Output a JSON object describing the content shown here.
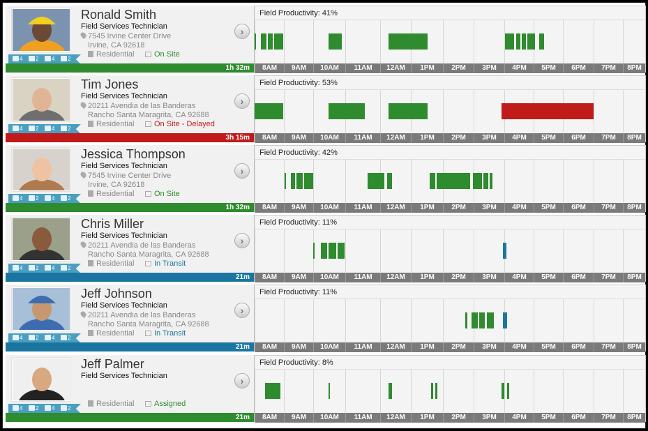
{
  "hours": [
    "8AM",
    "9AM",
    "10AM",
    "11AM",
    "12AM",
    "1PM",
    "2PM",
    "3PM",
    "4PM",
    "5PM",
    "6PM",
    "7PM",
    "8PM"
  ],
  "colors": {
    "green": "#2e8b2e",
    "red": "#c01a1a",
    "blue": "#1a76a0",
    "badge": "#4a9fc0"
  },
  "technicians": [
    {
      "name": "Ronald Smith",
      "role": "Field Services Technician",
      "address1": "7545 Irvine Center Drive",
      "address2": "Irvine, CA 92618",
      "job_type": "Residential",
      "status": "On Site",
      "status_color": "#2e8b2e",
      "duration": "1h 32m",
      "bar_color": "#2e8b2e",
      "productivity": "Field Productivity: 41%",
      "badges": [
        "4",
        "2",
        "4",
        "2"
      ],
      "photo": {
        "bg": "#7c93b0",
        "skin": "#6b4a35",
        "shirt": "#f0a020",
        "hat": "#f2d020"
      },
      "blocks": [
        {
          "start": 0,
          "end": 0.05,
          "color": "green"
        },
        {
          "start": 0.2,
          "end": 0.4,
          "color": "green"
        },
        {
          "start": 0.45,
          "end": 0.6,
          "color": "green"
        },
        {
          "start": 0.65,
          "end": 0.95,
          "color": "green"
        },
        {
          "start": 2.45,
          "end": 2.9,
          "color": "green"
        },
        {
          "start": 4.45,
          "end": 5.75,
          "color": "green"
        },
        {
          "start": 8.3,
          "end": 8.62,
          "color": "green"
        },
        {
          "start": 8.67,
          "end": 8.83,
          "color": "green"
        },
        {
          "start": 8.87,
          "end": 9.0,
          "color": "green"
        },
        {
          "start": 9.05,
          "end": 9.3,
          "color": "green"
        },
        {
          "start": 9.45,
          "end": 9.6,
          "color": "green"
        }
      ]
    },
    {
      "name": "Tim Jones",
      "role": "Field Services Technician",
      "address1": "20211 Avendia de las Banderas",
      "address2": "Rancho Santa Maragrita, CA 92688",
      "job_type": "Residential",
      "status": "On Site - Delayed",
      "status_color": "#c01a1a",
      "duration": "3h 15m",
      "bar_color": "#c01a1a",
      "productivity": "Field Productivity: 53%",
      "badges": [
        "4",
        "2",
        "4",
        "2"
      ],
      "photo": {
        "bg": "#d9d3c3",
        "skin": "#e0b596",
        "shirt": "#6f6f6f",
        "hat": ""
      },
      "blocks": [
        {
          "start": 0,
          "end": 0.95,
          "color": "green"
        },
        {
          "start": 2.45,
          "end": 3.65,
          "color": "green"
        },
        {
          "start": 4.45,
          "end": 5.75,
          "color": "green"
        },
        {
          "start": 8.2,
          "end": 11.25,
          "color": "red"
        }
      ]
    },
    {
      "name": "Jessica Thompson",
      "role": "Field Services Technician",
      "address1": "7545 Irvine Center Drive",
      "address2": "Irvine, CA 92618",
      "job_type": "Residential",
      "status": "On Site",
      "status_color": "#2e8b2e",
      "duration": "1h 32m",
      "bar_color": "#2e8b2e",
      "productivity": "Field Productivity: 42%",
      "badges": [
        "4",
        "2",
        "4",
        "2"
      ],
      "photo": {
        "bg": "#d8d2cc",
        "skin": "#eec3a4",
        "shirt": "#b07a50",
        "hat": ""
      },
      "blocks": [
        {
          "start": 1.0,
          "end": 1.05,
          "color": "green"
        },
        {
          "start": 1.2,
          "end": 1.35,
          "color": "green"
        },
        {
          "start": 1.4,
          "end": 1.6,
          "color": "green"
        },
        {
          "start": 1.65,
          "end": 1.95,
          "color": "green"
        },
        {
          "start": 3.75,
          "end": 4.3,
          "color": "green"
        },
        {
          "start": 4.4,
          "end": 4.55,
          "color": "green"
        },
        {
          "start": 5.8,
          "end": 6.0,
          "color": "green"
        },
        {
          "start": 6.05,
          "end": 7.15,
          "color": "green"
        },
        {
          "start": 7.25,
          "end": 7.55,
          "color": "green"
        },
        {
          "start": 7.6,
          "end": 7.75,
          "color": "green"
        },
        {
          "start": 7.8,
          "end": 7.9,
          "color": "green"
        }
      ]
    },
    {
      "name": "Chris Miller",
      "role": "Field Services Technician",
      "address1": "20211 Avendia de las Banderas",
      "address2": "Rancho Santa Maragrita, CA 92688",
      "job_type": "Residential",
      "status": "In Transit",
      "status_color": "#1a76a0",
      "duration": "21m",
      "bar_color": "#1a76a0",
      "productivity": "Field Productivity: 11%",
      "badges": [
        "4",
        "2",
        "4",
        "2"
      ],
      "photo": {
        "bg": "#9aa08a",
        "skin": "#8a5a3c",
        "shirt": "#333",
        "hat": ""
      },
      "blocks": [
        {
          "start": 1.95,
          "end": 2.0,
          "color": "green"
        },
        {
          "start": 2.2,
          "end": 2.4,
          "color": "green"
        },
        {
          "start": 2.45,
          "end": 2.7,
          "color": "green"
        },
        {
          "start": 2.75,
          "end": 2.98,
          "color": "green"
        },
        {
          "start": 8.25,
          "end": 8.35,
          "color": "blue"
        }
      ]
    },
    {
      "name": "Jeff Johnson",
      "role": "Field Services Technician",
      "address1": "20211 Avendia de las Banderas",
      "address2": "Rancho Santa Maragrita, CA 92688",
      "job_type": "Residential",
      "status": "In Transit",
      "status_color": "#1a76a0",
      "duration": "21m",
      "bar_color": "#1a76a0",
      "productivity": "Field Productivity: 11%",
      "badges": [
        "4",
        "2",
        "4",
        "2"
      ],
      "photo": {
        "bg": "#a8bfd8",
        "skin": "#c7986f",
        "shirt": "#3d6db0",
        "hat": "#3d6db0"
      },
      "blocks": [
        {
          "start": 7.0,
          "end": 7.05,
          "color": "green"
        },
        {
          "start": 7.2,
          "end": 7.4,
          "color": "green"
        },
        {
          "start": 7.45,
          "end": 7.65,
          "color": "green"
        },
        {
          "start": 7.7,
          "end": 7.95,
          "color": "green"
        },
        {
          "start": 8.25,
          "end": 8.38,
          "color": "blue"
        }
      ]
    },
    {
      "name": "Jeff Palmer",
      "role": "Field Services Technician",
      "address1": "",
      "address2": "",
      "job_type": "Residential",
      "status": "Assigned",
      "status_color": "#2e8b2e",
      "duration": "21m",
      "bar_color": "#2e8b2e",
      "productivity": "Field Productivity:  8%",
      "badges": [
        "4",
        "2",
        "4",
        "2"
      ],
      "photo": {
        "bg": "#efefef",
        "skin": "#d8a880",
        "shirt": "#222",
        "hat": ""
      },
      "blocks": [
        {
          "start": 0.35,
          "end": 0.85,
          "color": "green"
        },
        {
          "start": 2.45,
          "end": 2.5,
          "color": "green"
        },
        {
          "start": 4.45,
          "end": 4.55,
          "color": "green"
        },
        {
          "start": 5.85,
          "end": 5.92,
          "color": "green"
        },
        {
          "start": 6.0,
          "end": 6.07,
          "color": "green"
        },
        {
          "start": 8.2,
          "end": 8.28,
          "color": "green"
        },
        {
          "start": 8.37,
          "end": 8.45,
          "color": "green"
        }
      ]
    }
  ]
}
